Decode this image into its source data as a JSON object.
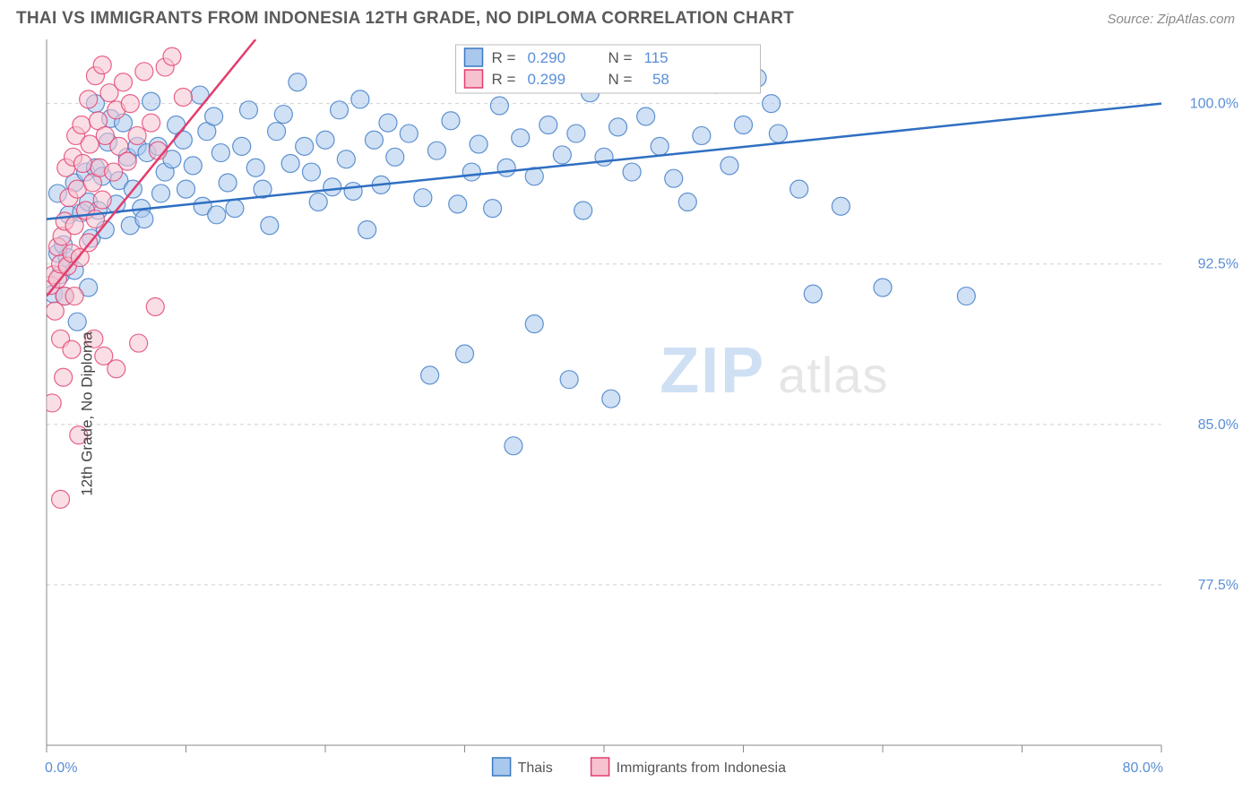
{
  "title": "THAI VS IMMIGRANTS FROM INDONESIA 12TH GRADE, NO DIPLOMA CORRELATION CHART",
  "source": "Source: ZipAtlas.com",
  "ylabel": "12th Grade, No Diploma",
  "watermark_a": "ZIP",
  "watermark_b": "atlas",
  "chart": {
    "type": "scatter",
    "xlim": [
      0,
      80
    ],
    "ylim": [
      70,
      103
    ],
    "x_ticks": [
      0,
      10,
      20,
      30,
      40,
      50,
      60,
      70,
      80
    ],
    "x_tick_labels": {
      "0": "0.0%",
      "80": "80.0%"
    },
    "y_ticks": [
      77.5,
      85.0,
      92.5,
      100.0
    ],
    "y_tick_labels": [
      "77.5%",
      "85.0%",
      "92.5%",
      "100.0%"
    ],
    "grid_color": "#d0d0d0",
    "background_color": "#ffffff",
    "marker_radius": 10,
    "marker_opacity": 0.55,
    "series": [
      {
        "name": "Thais",
        "fill": "#a9c8ec",
        "stroke": "#3b78c4",
        "R": "0.290",
        "N": "115",
        "trend": {
          "x1": 0,
          "y1": 94.6,
          "x2": 80,
          "y2": 100.0,
          "color": "#2f6fc2",
          "width": 2.5
        },
        "points": [
          [
            0.5,
            91.1
          ],
          [
            0.8,
            93.0
          ],
          [
            0.8,
            95.8
          ],
          [
            1.0,
            92.0
          ],
          [
            1.2,
            93.4
          ],
          [
            1.3,
            91.0
          ],
          [
            1.5,
            92.8
          ],
          [
            1.6,
            94.8
          ],
          [
            2.0,
            92.2
          ],
          [
            2.0,
            96.3
          ],
          [
            2.2,
            89.8
          ],
          [
            2.5,
            94.9
          ],
          [
            2.8,
            96.8
          ],
          [
            3.0,
            91.4
          ],
          [
            3.0,
            95.4
          ],
          [
            3.2,
            93.7
          ],
          [
            3.5,
            97.0
          ],
          [
            3.5,
            100.0
          ],
          [
            3.7,
            95.0
          ],
          [
            4.0,
            96.6
          ],
          [
            4.2,
            94.1
          ],
          [
            4.4,
            98.2
          ],
          [
            4.6,
            99.3
          ],
          [
            5.0,
            95.3
          ],
          [
            5.2,
            96.4
          ],
          [
            5.5,
            99.1
          ],
          [
            5.8,
            97.5
          ],
          [
            6.0,
            94.3
          ],
          [
            6.2,
            96.0
          ],
          [
            6.5,
            98.0
          ],
          [
            6.8,
            95.1
          ],
          [
            7.0,
            94.6
          ],
          [
            7.2,
            97.7
          ],
          [
            7.5,
            100.1
          ],
          [
            8.0,
            98.0
          ],
          [
            8.2,
            95.8
          ],
          [
            8.5,
            96.8
          ],
          [
            9.0,
            97.4
          ],
          [
            9.3,
            99.0
          ],
          [
            9.8,
            98.3
          ],
          [
            10.0,
            96.0
          ],
          [
            10.5,
            97.1
          ],
          [
            11.0,
            100.4
          ],
          [
            11.2,
            95.2
          ],
          [
            11.5,
            98.7
          ],
          [
            12.0,
            99.4
          ],
          [
            12.5,
            97.7
          ],
          [
            13.0,
            96.3
          ],
          [
            13.5,
            95.1
          ],
          [
            14.0,
            98.0
          ],
          [
            14.5,
            99.7
          ],
          [
            15.0,
            97.0
          ],
          [
            15.5,
            96.0
          ],
          [
            16.0,
            94.3
          ],
          [
            16.5,
            98.7
          ],
          [
            17.0,
            99.5
          ],
          [
            17.5,
            97.2
          ],
          [
            18.0,
            101.0
          ],
          [
            18.5,
            98.0
          ],
          [
            19.0,
            96.8
          ],
          [
            19.5,
            95.4
          ],
          [
            20.0,
            98.3
          ],
          [
            20.5,
            96.1
          ],
          [
            21.0,
            99.7
          ],
          [
            21.5,
            97.4
          ],
          [
            22.0,
            95.9
          ],
          [
            22.5,
            100.2
          ],
          [
            23.5,
            98.3
          ],
          [
            24.0,
            96.2
          ],
          [
            24.5,
            99.1
          ],
          [
            25.0,
            97.5
          ],
          [
            26.0,
            98.6
          ],
          [
            27.0,
            95.6
          ],
          [
            27.5,
            87.3
          ],
          [
            28.0,
            97.8
          ],
          [
            29.0,
            99.2
          ],
          [
            30.0,
            88.3
          ],
          [
            30.5,
            96.8
          ],
          [
            31.0,
            98.1
          ],
          [
            32.0,
            95.1
          ],
          [
            32.5,
            99.9
          ],
          [
            33.0,
            97.0
          ],
          [
            33.5,
            84.0
          ],
          [
            34.0,
            98.4
          ],
          [
            35.0,
            96.6
          ],
          [
            35.0,
            89.7
          ],
          [
            36.0,
            99.0
          ],
          [
            37.0,
            97.6
          ],
          [
            37.5,
            87.1
          ],
          [
            38.0,
            98.6
          ],
          [
            39.0,
            100.5
          ],
          [
            40.0,
            97.5
          ],
          [
            40.5,
            86.2
          ],
          [
            41.0,
            98.9
          ],
          [
            42.0,
            96.8
          ],
          [
            43.0,
            99.4
          ],
          [
            44.0,
            98.0
          ],
          [
            45.0,
            96.5
          ],
          [
            46.0,
            95.4
          ],
          [
            47.0,
            98.5
          ],
          [
            48.0,
            100.9
          ],
          [
            49.0,
            97.1
          ],
          [
            50.0,
            99.0
          ],
          [
            51.0,
            101.2
          ],
          [
            52.5,
            98.6
          ],
          [
            54.0,
            96.0
          ],
          [
            55.0,
            91.1
          ],
          [
            57.0,
            95.2
          ],
          [
            60.0,
            91.4
          ],
          [
            66.0,
            91.0
          ],
          [
            52.0,
            100.0
          ],
          [
            38.5,
            95.0
          ],
          [
            29.5,
            95.3
          ],
          [
            23.0,
            94.1
          ],
          [
            12.2,
            94.8
          ]
        ]
      },
      {
        "name": "Immigrants from Indonesia",
        "fill": "#f6c2cf",
        "stroke": "#e23d6d",
        "R": "0.299",
        "N": "58",
        "trend": {
          "x1": 0,
          "y1": 91.0,
          "x2": 15,
          "y2": 103.0,
          "color": "#e23d6d",
          "width": 2.5
        },
        "points": [
          [
            0.3,
            91.5
          ],
          [
            0.5,
            92.0
          ],
          [
            0.6,
            90.3
          ],
          [
            0.8,
            93.3
          ],
          [
            0.8,
            91.8
          ],
          [
            1.0,
            92.5
          ],
          [
            1.0,
            89.0
          ],
          [
            1.1,
            93.8
          ],
          [
            1.3,
            91.0
          ],
          [
            1.3,
            94.5
          ],
          [
            1.4,
            97.0
          ],
          [
            1.5,
            92.4
          ],
          [
            1.6,
            95.6
          ],
          [
            1.8,
            93.0
          ],
          [
            1.9,
            97.5
          ],
          [
            2.0,
            91.0
          ],
          [
            2.0,
            94.3
          ],
          [
            2.1,
            98.5
          ],
          [
            2.2,
            96.0
          ],
          [
            2.4,
            92.8
          ],
          [
            2.5,
            99.0
          ],
          [
            2.6,
            97.2
          ],
          [
            2.8,
            95.0
          ],
          [
            3.0,
            100.2
          ],
          [
            3.0,
            93.5
          ],
          [
            3.1,
            98.1
          ],
          [
            3.3,
            96.3
          ],
          [
            3.5,
            101.3
          ],
          [
            3.5,
            94.6
          ],
          [
            3.7,
            99.2
          ],
          [
            3.8,
            97.0
          ],
          [
            4.0,
            95.5
          ],
          [
            4.0,
            101.8
          ],
          [
            4.2,
            98.5
          ],
          [
            4.5,
            100.5
          ],
          [
            4.8,
            96.8
          ],
          [
            5.0,
            99.7
          ],
          [
            5.2,
            98.0
          ],
          [
            5.5,
            101.0
          ],
          [
            5.8,
            97.3
          ],
          [
            6.0,
            100.0
          ],
          [
            6.5,
            98.5
          ],
          [
            7.0,
            101.5
          ],
          [
            7.5,
            99.1
          ],
          [
            8.0,
            97.8
          ],
          [
            8.5,
            101.7
          ],
          [
            9.0,
            102.2
          ],
          [
            9.8,
            100.3
          ],
          [
            0.4,
            86.0
          ],
          [
            1.2,
            87.2
          ],
          [
            1.8,
            88.5
          ],
          [
            2.3,
            84.5
          ],
          [
            3.4,
            89.0
          ],
          [
            4.1,
            88.2
          ],
          [
            5.0,
            87.6
          ],
          [
            6.6,
            88.8
          ],
          [
            7.8,
            90.5
          ],
          [
            1.0,
            81.5
          ]
        ]
      }
    ]
  },
  "legend_top": {
    "r_label": "R =",
    "n_label": "N ="
  },
  "legend_bottom": {
    "items": [
      "Thais",
      "Immigrants from Indonesia"
    ]
  }
}
